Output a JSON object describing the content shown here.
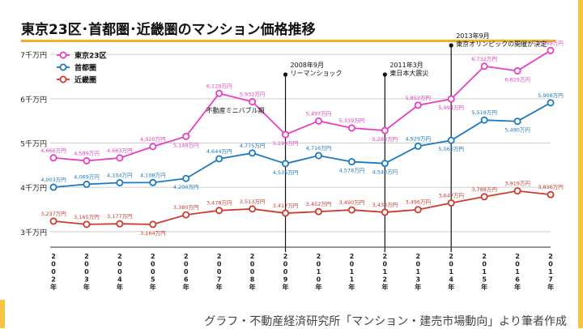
{
  "page": {
    "source": "グラフ・不動産経済研究所「マンション・建売市場動向」より筆者作成"
  },
  "chart_data": {
    "type": "line",
    "title": "東京23区･首都圏･近畿圏のマンション価格推移",
    "x": [
      "2002年",
      "2003年",
      "2004年",
      "2005年",
      "2006年",
      "2007年",
      "2008年",
      "2009年",
      "2010年",
      "2011年",
      "2012年",
      "2013年",
      "2014年",
      "2015年",
      "2016年",
      "2017年"
    ],
    "y_ticks": [
      3000,
      4000,
      5000,
      6000,
      7000
    ],
    "y_tick_labels": [
      "3千万円",
      "4千万円",
      "5千万円",
      "6千万円",
      "7千万円"
    ],
    "ylim": [
      2650,
      7350
    ],
    "grid": true,
    "legend_position": "top-left",
    "series": [
      {
        "name": "東京23区",
        "color": "#e83fc0",
        "values": [
          4666,
          4599,
          4663,
          4920,
          5149,
          6120,
          5932,
          5190,
          5497,
          5339,
          5283,
          5853,
          5994,
          6732,
          6629,
          7089
        ],
        "labels": [
          "4,666万円",
          "4,599万円",
          "4,663万円",
          "4,920万円",
          "5,149万円",
          "6,120万円",
          "5,932万円",
          "5,190万円",
          "5,497万円",
          "5,339万円",
          "5,283万円",
          "5,853万円",
          "5,994万円",
          "6,732万円",
          "6,629万円",
          "7,089万円"
        ],
        "label_pos": [
          "above",
          "above",
          "above",
          "above",
          "below",
          "above",
          "above",
          "below",
          "above",
          "above",
          "below",
          "above",
          "below",
          "above",
          "below",
          "above"
        ]
      },
      {
        "name": "首都圏",
        "color": "#1b7ac0",
        "values": [
          4003,
          4069,
          4104,
          4108,
          4200,
          4644,
          4775,
          4535,
          4716,
          4578,
          4540,
          4929,
          5060,
          5518,
          5490,
          5908
        ],
        "labels": [
          "4,003万円",
          "4,069万円",
          "4,104万円",
          "4,108万円",
          "4,200万円",
          "4,644万円",
          "4,775万円",
          "4,535万円",
          "4,716万円",
          "4,578万円",
          "4,540万円",
          "4,929万円",
          "5,060万円",
          "5,518万円",
          "5,490万円",
          "5,908万円"
        ],
        "label_pos": [
          "above",
          "above",
          "above",
          "above",
          "below",
          "above",
          "above",
          "below",
          "above",
          "below",
          "below",
          "above",
          "below",
          "above",
          "below",
          "above"
        ]
      },
      {
        "name": "近畿圏",
        "color": "#d03a2e",
        "values": [
          3237,
          3165,
          3177,
          3164,
          3380,
          3478,
          3513,
          3417,
          3452,
          3490,
          3438,
          3496,
          3647,
          3788,
          3919,
          3836
        ],
        "labels": [
          "3,237万円",
          "3,165万円",
          "3,177万円",
          "3,164万円",
          "3,380万円",
          "3,478万円",
          "3,513万円",
          "3,417万円",
          "3,452万円",
          "3,490万円",
          "3,438万円",
          "3,496万円",
          "3,647万円",
          "3,788万円",
          "3,919万円",
          "3,836万円"
        ],
        "label_pos": [
          "above",
          "above",
          "above",
          "below",
          "above",
          "above",
          "above",
          "above",
          "above",
          "above",
          "above",
          "above",
          "above",
          "above",
          "above",
          "above"
        ]
      }
    ],
    "annotations": [
      {
        "x_index": 5,
        "value": 5500,
        "lines": [
          "不動産ミニバブル期"
        ],
        "vline": false
      },
      {
        "x_index": 7,
        "lines": [
          "2008年9月",
          "リーマンショック"
        ],
        "vline": true
      },
      {
        "x_index": 10,
        "lines": [
          "2011年3月",
          "東日本大震災"
        ],
        "vline": true
      },
      {
        "x_index": 12,
        "lines": [
          "2013年9月",
          "東京オリンピックの開催が決定"
        ],
        "vline": true
      }
    ]
  }
}
